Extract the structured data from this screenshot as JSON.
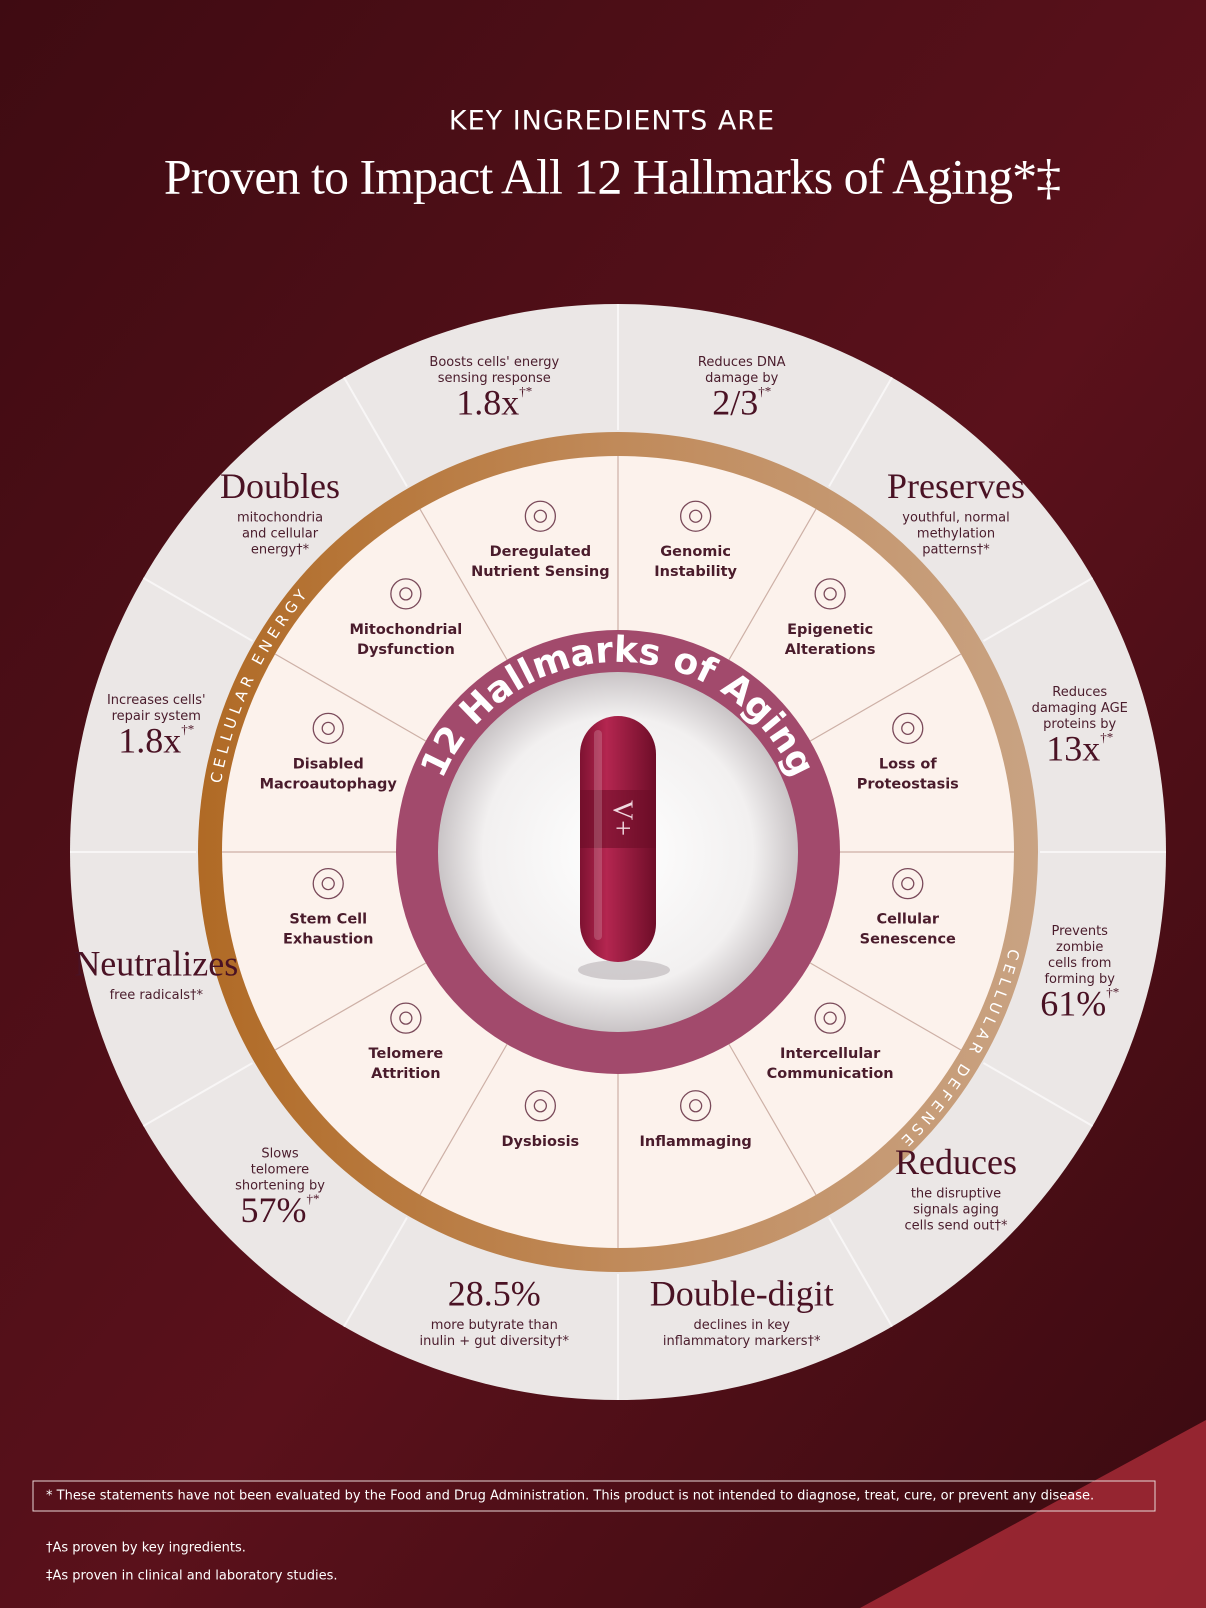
{
  "header": {
    "kicker": "KEY INGREDIENTS ARE",
    "title": "Proven to Impact All 12 Hallmarks of Aging*‡"
  },
  "wheel": {
    "center_title": "12 Hallmarks of Aging",
    "capsule_logo": "V+",
    "arc_left": "CELLULAR ENERGY",
    "arc_right": "CELLULAR DEFENSE",
    "hallmarks": [
      [
        "Deregulated",
        "Nutrient Sensing"
      ],
      [
        "Genomic",
        "Instability"
      ],
      [
        "Epigenetic",
        "Alterations"
      ],
      [
        "Loss of",
        "Proteostasis"
      ],
      [
        "Cellular",
        "Senescence"
      ],
      [
        "Intercellular",
        "Communication"
      ],
      [
        "Inflammaging"
      ],
      [
        "Dysbiosis"
      ],
      [
        "Telomere",
        "Attrition"
      ],
      [
        "Stem Cell",
        "Exhaustion"
      ],
      [
        "Disabled",
        "Macroautophagy"
      ],
      [
        "Mitochondrial",
        "Dysfunction"
      ]
    ],
    "stats": [
      {
        "text": [
          "Boosts cells' energy",
          "sensing response"
        ],
        "value": "1.8x",
        "mark": "†*"
      },
      {
        "text": [
          "Reduces DNA",
          "damage by"
        ],
        "value": "2/3",
        "mark": "†*"
      },
      {
        "value": "Preserves",
        "text": [
          "youthful, normal",
          "methylation",
          "patterns†*"
        ]
      },
      {
        "text": [
          "Reduces",
          "damaging AGE",
          "proteins by"
        ],
        "value": "13x",
        "mark": "†*"
      },
      {
        "text": [
          "Prevents",
          "zombie",
          "cells from",
          "forming by"
        ],
        "value": "61%",
        "mark": "†*"
      },
      {
        "value": "Reduces",
        "text": [
          "the disruptive",
          "signals aging",
          "cells send out†*"
        ]
      },
      {
        "value": "Double-digit",
        "text": [
          "declines in key",
          "inflammatory markers†*"
        ]
      },
      {
        "value": "28.5%",
        "text": [
          "more butyrate than",
          "inulin + gut diversity†*"
        ]
      },
      {
        "text": [
          "Slows",
          "telomere",
          "shortening by"
        ],
        "value": "57%",
        "mark": "†*"
      },
      {
        "value": "Neutralizes",
        "text": [
          "free radicals†*"
        ]
      },
      {
        "text": [
          "Increases cells'",
          "repair system"
        ],
        "value": "1.8x",
        "mark": "†*"
      },
      {
        "value": "Doubles",
        "text": [
          "mitochondria",
          "and cellular",
          "energy†*"
        ]
      }
    ]
  },
  "footer": {
    "disclaimer": "* These statements have not been evaluated by the Food and Drug Administration. This product is not intended to diagnose, treat, cure, or prevent any disease.",
    "notes": [
      "†As proven by key ingredients.",
      "‡As proven in clinical and laboratory studies."
    ]
  }
}
